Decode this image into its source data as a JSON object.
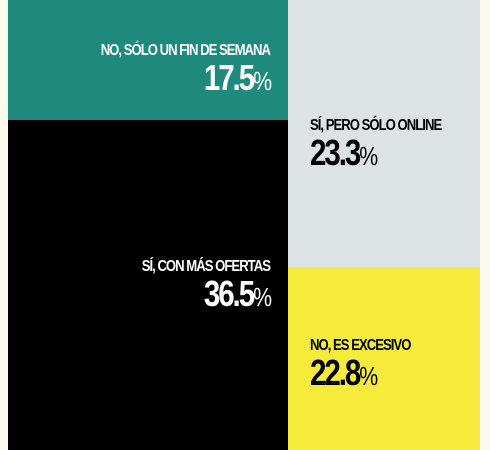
{
  "chart_data": {
    "type": "treemap",
    "cells": [
      {
        "label": "NO, SÓLO UN FIN DE SEMANA",
        "value": 17.5,
        "value_text": "17.5",
        "unit": "%",
        "color": "#1d8a7d",
        "text_color": "#ffffff"
      },
      {
        "label": "SÍ, CON MÁS OFERTAS",
        "value": 36.5,
        "value_text": "36.5",
        "unit": "%",
        "color": "#000000",
        "text_color": "#ffffff"
      },
      {
        "label": "SÍ, PERO SÓLO ONLINE",
        "value": 23.3,
        "value_text": "23.3",
        "unit": "%",
        "color": "#dde3e5",
        "text_color": "#000000"
      },
      {
        "label": "NO, ES EXCESIVO",
        "value": 22.8,
        "value_text": "22.8",
        "unit": "%",
        "color": "#f6eb3a",
        "text_color": "#000000"
      }
    ]
  }
}
